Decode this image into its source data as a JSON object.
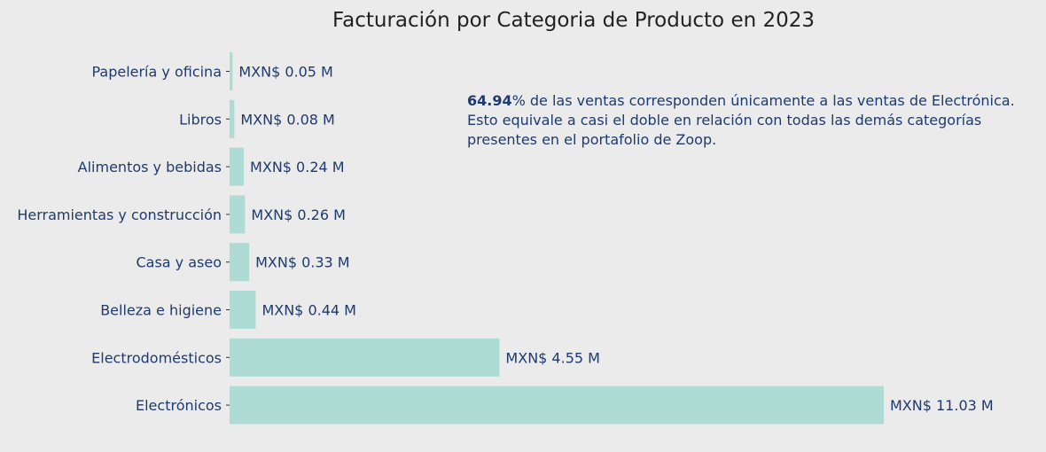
{
  "colors": {
    "background": "#ebebeb",
    "bar": "#afdbd5",
    "text": "#1e3a6e",
    "title": "#222222"
  },
  "chart_data": {
    "type": "bar",
    "orientation": "horizontal",
    "title": "Facturación por Categoria de Producto en 2023",
    "xlabel": "",
    "ylabel": "",
    "categories": [
      "Papelería y oficina",
      "Libros",
      "Alimentos y bebidas",
      "Herramientas y construcción",
      "Casa y aseo",
      "Belleza e higiene",
      "Electrodomésticos",
      "Electrónicos"
    ],
    "values": [
      0.05,
      0.08,
      0.24,
      0.26,
      0.33,
      0.44,
      4.55,
      11.03
    ],
    "value_labels": [
      "MXN$ 0.05 M",
      "MXN$ 0.08 M",
      "MXN$ 0.24 M",
      "MXN$ 0.26 M",
      "MXN$ 0.33 M",
      "MXN$ 0.44 M",
      "MXN$ 4.55 M",
      "MXN$ 11.03 M"
    ],
    "xlim": [
      0,
      11.5
    ],
    "grid": false,
    "annotation": {
      "bold": "64.94",
      "line1_rest": "% de las ventas corresponden únicamente a las ventas de Electrónica.",
      "line2": "Esto equivale a casi el doble en relación con todas las demás categorías",
      "line3": "presentes en el portafolio de Zoop."
    }
  }
}
